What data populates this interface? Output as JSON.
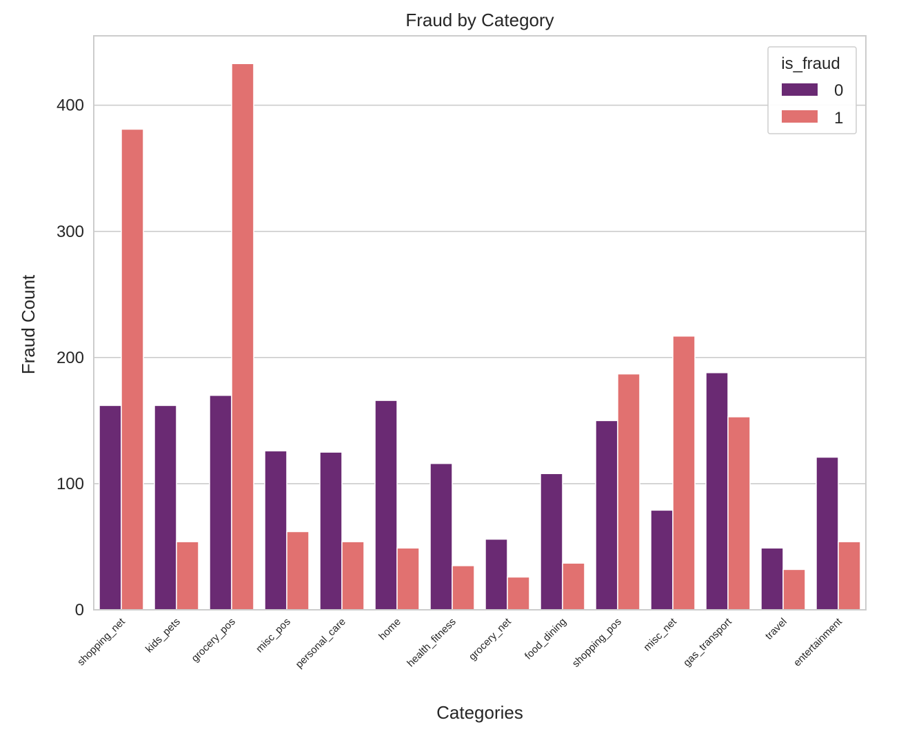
{
  "chart_data": {
    "type": "bar",
    "title": "Fraud by Category",
    "xlabel": "Categories",
    "ylabel": "Fraud Count",
    "ylim": [
      0,
      455
    ],
    "yticks": [
      0,
      100,
      200,
      300,
      400
    ],
    "grid": "horizontal",
    "legend": {
      "title": "is_fraud",
      "placement": "top-right"
    },
    "categories": [
      "shopping_net",
      "kids_pets",
      "grocery_pos",
      "misc_pos",
      "personal_care",
      "home",
      "health_fitness",
      "grocery_net",
      "food_dining",
      "shopping_pos",
      "misc_net",
      "gas_transport",
      "travel",
      "entertainment"
    ],
    "series": [
      {
        "name": "0",
        "color": "#6a2a73",
        "values": [
          162,
          162,
          170,
          126,
          125,
          166,
          116,
          56,
          108,
          150,
          79,
          188,
          49,
          121
        ]
      },
      {
        "name": "1",
        "color": "#e17170",
        "values": [
          381,
          54,
          433,
          62,
          54,
          49,
          35,
          26,
          37,
          187,
          217,
          153,
          32,
          54
        ]
      }
    ]
  }
}
